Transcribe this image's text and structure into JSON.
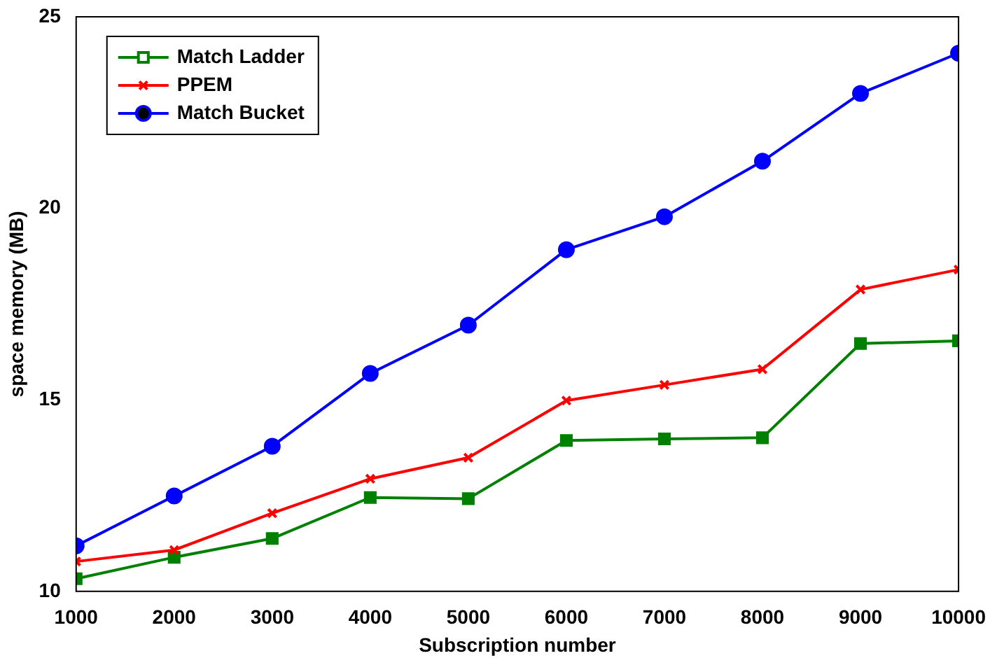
{
  "chart_data": {
    "type": "line",
    "xlabel": "Subscription number",
    "ylabel": "space memory (MB)",
    "x": [
      1000,
      2000,
      3000,
      4000,
      5000,
      6000,
      7000,
      8000,
      9000,
      10000
    ],
    "xlim": [
      1000,
      10000
    ],
    "xticks": [
      1000,
      2000,
      3000,
      4000,
      5000,
      6000,
      7000,
      8000,
      9000,
      10000
    ],
    "ylim": [
      10,
      25
    ],
    "yticks": [
      10,
      15,
      20,
      25
    ],
    "grid": false,
    "legend": "top left",
    "line_style": "solid",
    "series": [
      {
        "name": "Match Ladder",
        "color": "#008000",
        "marker": "square",
        "values": [
          10.33,
          10.89,
          11.38,
          12.45,
          12.42,
          13.94,
          13.98,
          14.01,
          16.47,
          16.54
        ]
      },
      {
        "name": "PPEM",
        "color": "#ff0000",
        "marker": "cross",
        "values": [
          10.78,
          11.08,
          12.04,
          12.94,
          13.49,
          14.98,
          15.39,
          15.8,
          17.88,
          18.4
        ]
      },
      {
        "name": "Match Bucket",
        "color": "#0000ff",
        "marker": "circle",
        "values": [
          11.19,
          12.49,
          13.79,
          15.69,
          16.95,
          18.92,
          19.78,
          21.23,
          23.0,
          24.05
        ]
      }
    ]
  }
}
